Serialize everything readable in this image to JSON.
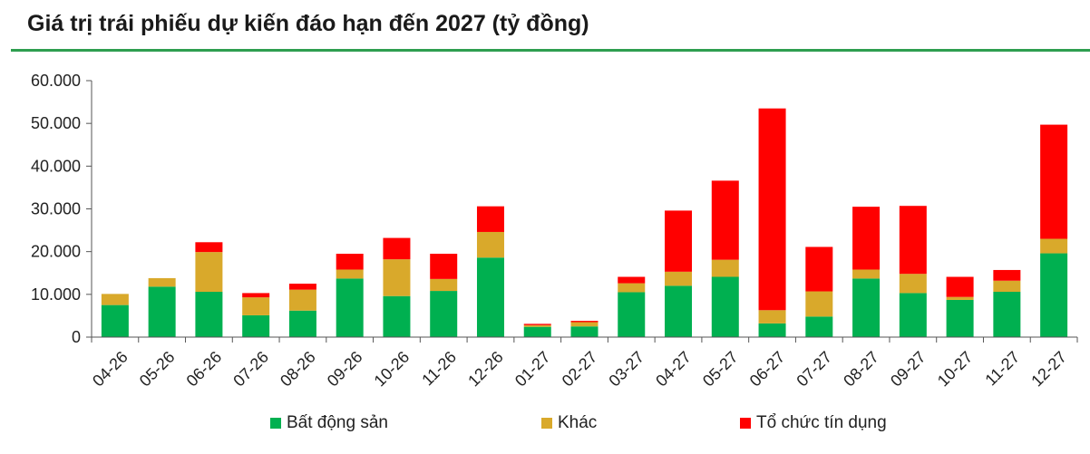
{
  "chart_data": {
    "type": "bar",
    "stacked": true,
    "title": "Giá trị trái phiếu dự kiến đáo hạn đến 2027 (tỷ đồng)",
    "categories": [
      "04-26",
      "05-26",
      "06-26",
      "07-26",
      "08-26",
      "09-26",
      "10-26",
      "11-26",
      "12-26",
      "01-27",
      "02-27",
      "03-27",
      "04-27",
      "05-27",
      "06-27",
      "07-27",
      "08-27",
      "09-27",
      "10-27",
      "11-27",
      "12-27"
    ],
    "series": [
      {
        "name": "Bất động sản",
        "color": "#00b050",
        "values": [
          7500,
          11800,
          10600,
          5100,
          6200,
          13700,
          9600,
          10800,
          18600,
          2400,
          2500,
          10500,
          12000,
          14100,
          3200,
          4800,
          13700,
          10300,
          8700,
          10600,
          19600
        ]
      },
      {
        "name": "Khác",
        "color": "#d9a92b",
        "values": [
          2600,
          2000,
          9300,
          4200,
          4900,
          2100,
          8600,
          2800,
          6000,
          400,
          1000,
          2100,
          3300,
          4000,
          3100,
          5900,
          2100,
          4500,
          700,
          2600,
          3400
        ]
      },
      {
        "name": "Tổ chức tín dụng",
        "color": "#ff0000",
        "values": [
          0,
          0,
          2300,
          1000,
          1400,
          3700,
          5000,
          5900,
          6000,
          300,
          300,
          1500,
          14300,
          18500,
          47200,
          10400,
          14700,
          15900,
          4700,
          2500,
          26700
        ]
      }
    ],
    "ylim": [
      0,
      60000
    ],
    "yticks": [
      "0",
      "10.000",
      "20.000",
      "30.000",
      "40.000",
      "50.000",
      "60.000"
    ],
    "legend_position": "bottom",
    "grid": false
  }
}
